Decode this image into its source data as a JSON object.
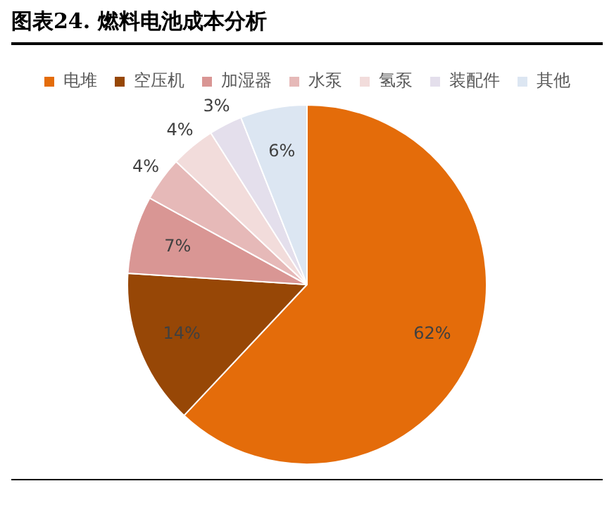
{
  "chart_data": {
    "type": "pie",
    "title": "图表24.  燃料电池成本分析",
    "categories": [
      "电堆",
      "空压机",
      "加湿器",
      "水泵",
      "氢泵",
      "装配件",
      "其他"
    ],
    "values": [
      62,
      14,
      7,
      4,
      4,
      3,
      6
    ],
    "colors": [
      "#e46c0a",
      "#974706",
      "#d99694",
      "#e6b9b8",
      "#f2dcdb",
      "#e4dfec",
      "#dce6f2"
    ],
    "value_labels": [
      "62%",
      "14%",
      "7%",
      "4%",
      "4%",
      "3%",
      "6%"
    ],
    "legend": "top"
  }
}
